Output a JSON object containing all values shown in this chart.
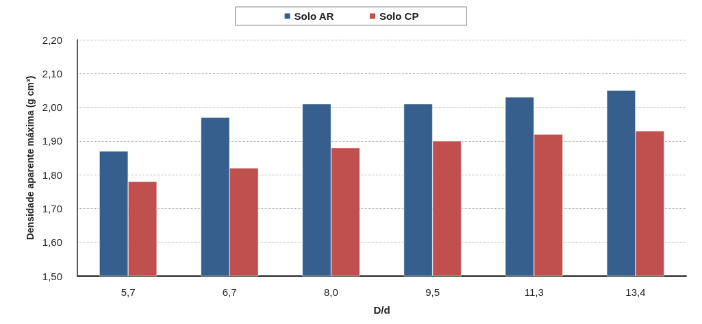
{
  "chart_data": {
    "type": "bar",
    "xlabel": "D/d",
    "ylabel": "Densidade aparente máxima (g cm³)",
    "categories": [
      "5,7",
      "6,7",
      "8,0",
      "9,5",
      "11,3",
      "13,4"
    ],
    "series": [
      {
        "name": "Solo AR",
        "color": "#365f8e",
        "values": [
          1.87,
          1.97,
          2.01,
          2.01,
          2.03,
          2.05
        ]
      },
      {
        "name": "Solo CP",
        "color": "#c0504d",
        "values": [
          1.78,
          1.82,
          1.88,
          1.9,
          1.92,
          1.93
        ]
      }
    ],
    "ylim": [
      1.5,
      2.2
    ],
    "yticks": [
      {
        "value": 1.5,
        "label": "1,50"
      },
      {
        "value": 1.6,
        "label": "1,60"
      },
      {
        "value": 1.7,
        "label": "1,70"
      },
      {
        "value": 1.8,
        "label": "1,80"
      },
      {
        "value": 1.9,
        "label": "1,90"
      },
      {
        "value": 2.0,
        "label": "2,00"
      },
      {
        "value": 2.1,
        "label": "2,10"
      },
      {
        "value": 2.2,
        "label": "2,20"
      }
    ],
    "grid": "y",
    "legend": "top"
  }
}
